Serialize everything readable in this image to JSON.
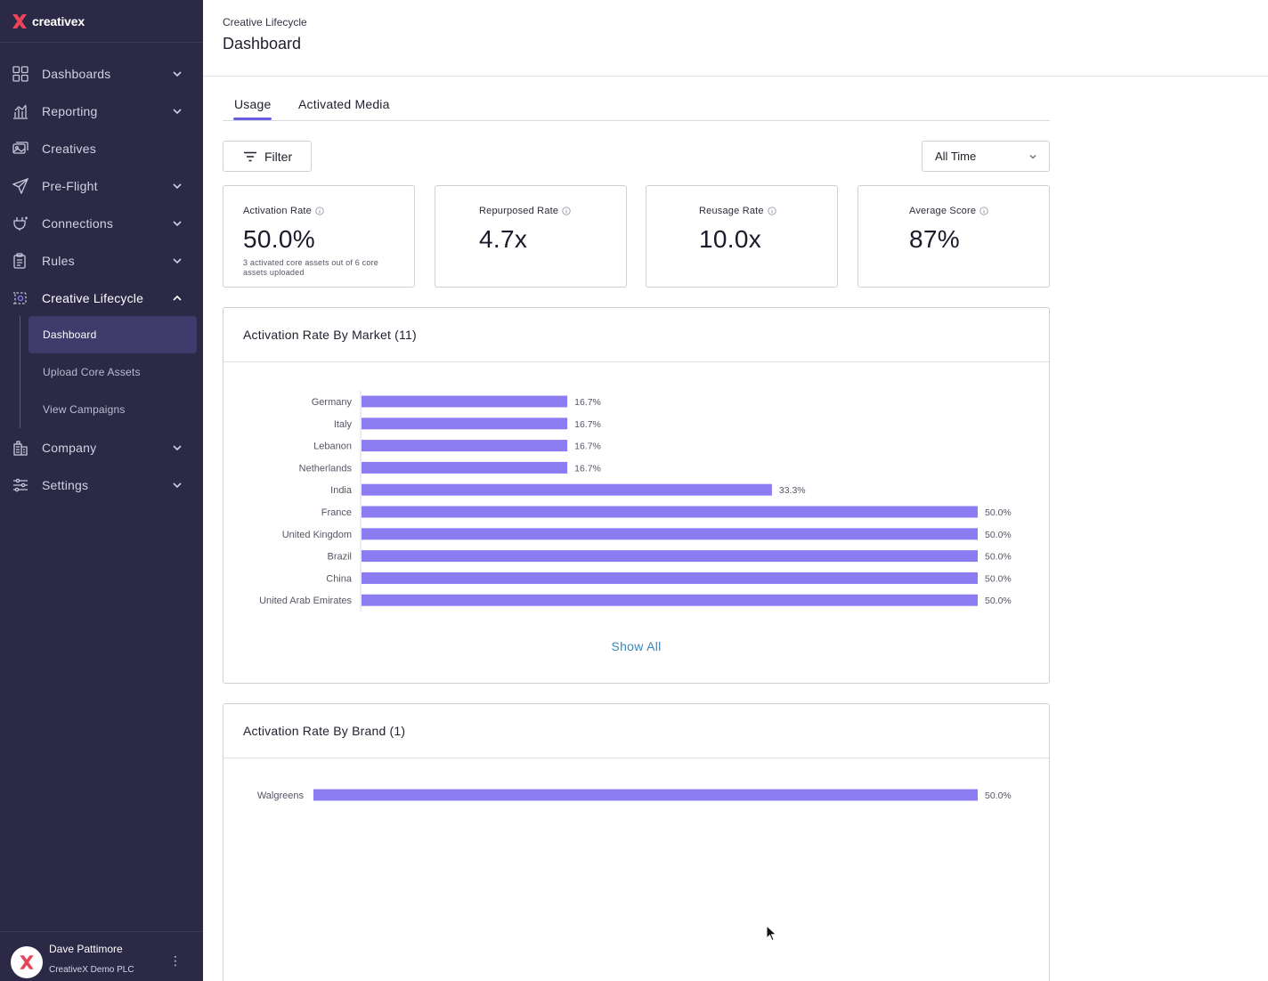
{
  "brand": {
    "name": "creativex"
  },
  "sidebar": {
    "items": [
      {
        "label": "Dashboards",
        "icon": "grid-icon",
        "expandable": true
      },
      {
        "label": "Reporting",
        "icon": "bar-chart-icon",
        "expandable": true
      },
      {
        "label": "Creatives",
        "icon": "images-icon",
        "expandable": false
      },
      {
        "label": "Pre-Flight",
        "icon": "paper-plane-icon",
        "expandable": true
      },
      {
        "label": "Connections",
        "icon": "plug-icon",
        "expandable": true
      },
      {
        "label": "Rules",
        "icon": "clipboard-icon",
        "expandable": true
      },
      {
        "label": "Creative Lifecycle",
        "icon": "lifecycle-icon",
        "expandable": true,
        "expanded": true
      },
      {
        "label": "Company",
        "icon": "building-icon",
        "expandable": true
      },
      {
        "label": "Settings",
        "icon": "sliders-icon",
        "expandable": true
      }
    ],
    "subitems": [
      {
        "label": "Dashboard",
        "active": true
      },
      {
        "label": "Upload Core Assets"
      },
      {
        "label": "View Campaigns"
      }
    ]
  },
  "user": {
    "name": "Dave Pattimore",
    "org": "CreativeX Demo PLC"
  },
  "header": {
    "breadcrumb": "Creative Lifecycle",
    "title": "Dashboard"
  },
  "tabs": [
    {
      "label": "Usage",
      "active": true
    },
    {
      "label": "Activated Media"
    }
  ],
  "toolbar": {
    "filter_label": "Filter",
    "time_range": "All Time"
  },
  "kpis": [
    {
      "label": "Activation Rate",
      "value": "50.0%",
      "sub": "3 activated core assets out of 6 core assets uploaded"
    },
    {
      "label": "Repurposed Rate",
      "value": "4.7x"
    },
    {
      "label": "Reusage Rate",
      "value": "10.0x"
    },
    {
      "label": "Average Score",
      "value": "87%"
    }
  ],
  "panels": {
    "market": {
      "title": "Activation Rate By Market (11)",
      "show_all": "Show All"
    },
    "brand": {
      "title": "Activation Rate By Brand (1)"
    }
  },
  "colors": {
    "accent": "#6a5ee0",
    "bar": "#8b7cf2",
    "sidebar": "#2b2946",
    "link": "#3a86b8"
  },
  "chart_data": [
    {
      "type": "bar",
      "orientation": "horizontal",
      "categories": [
        "Germany",
        "Italy",
        "Lebanon",
        "Netherlands",
        "India",
        "France",
        "United Kingdom",
        "Brazil",
        "China",
        "United Arab Emirates"
      ],
      "values": [
        16.7,
        16.7,
        16.7,
        16.7,
        33.3,
        50.0,
        50.0,
        50.0,
        50.0,
        50.0
      ],
      "value_labels": [
        "16.7%",
        "16.7%",
        "16.7%",
        "16.7%",
        "33.3%",
        "50.0%",
        "50.0%",
        "50.0%",
        "50.0%",
        "50.0%"
      ],
      "xlim": [
        0,
        50
      ]
    },
    {
      "type": "bar",
      "orientation": "horizontal",
      "categories": [
        "Walgreens"
      ],
      "values": [
        50.0
      ],
      "value_labels": [
        "50.0%"
      ],
      "xlim": [
        0,
        50
      ]
    }
  ]
}
